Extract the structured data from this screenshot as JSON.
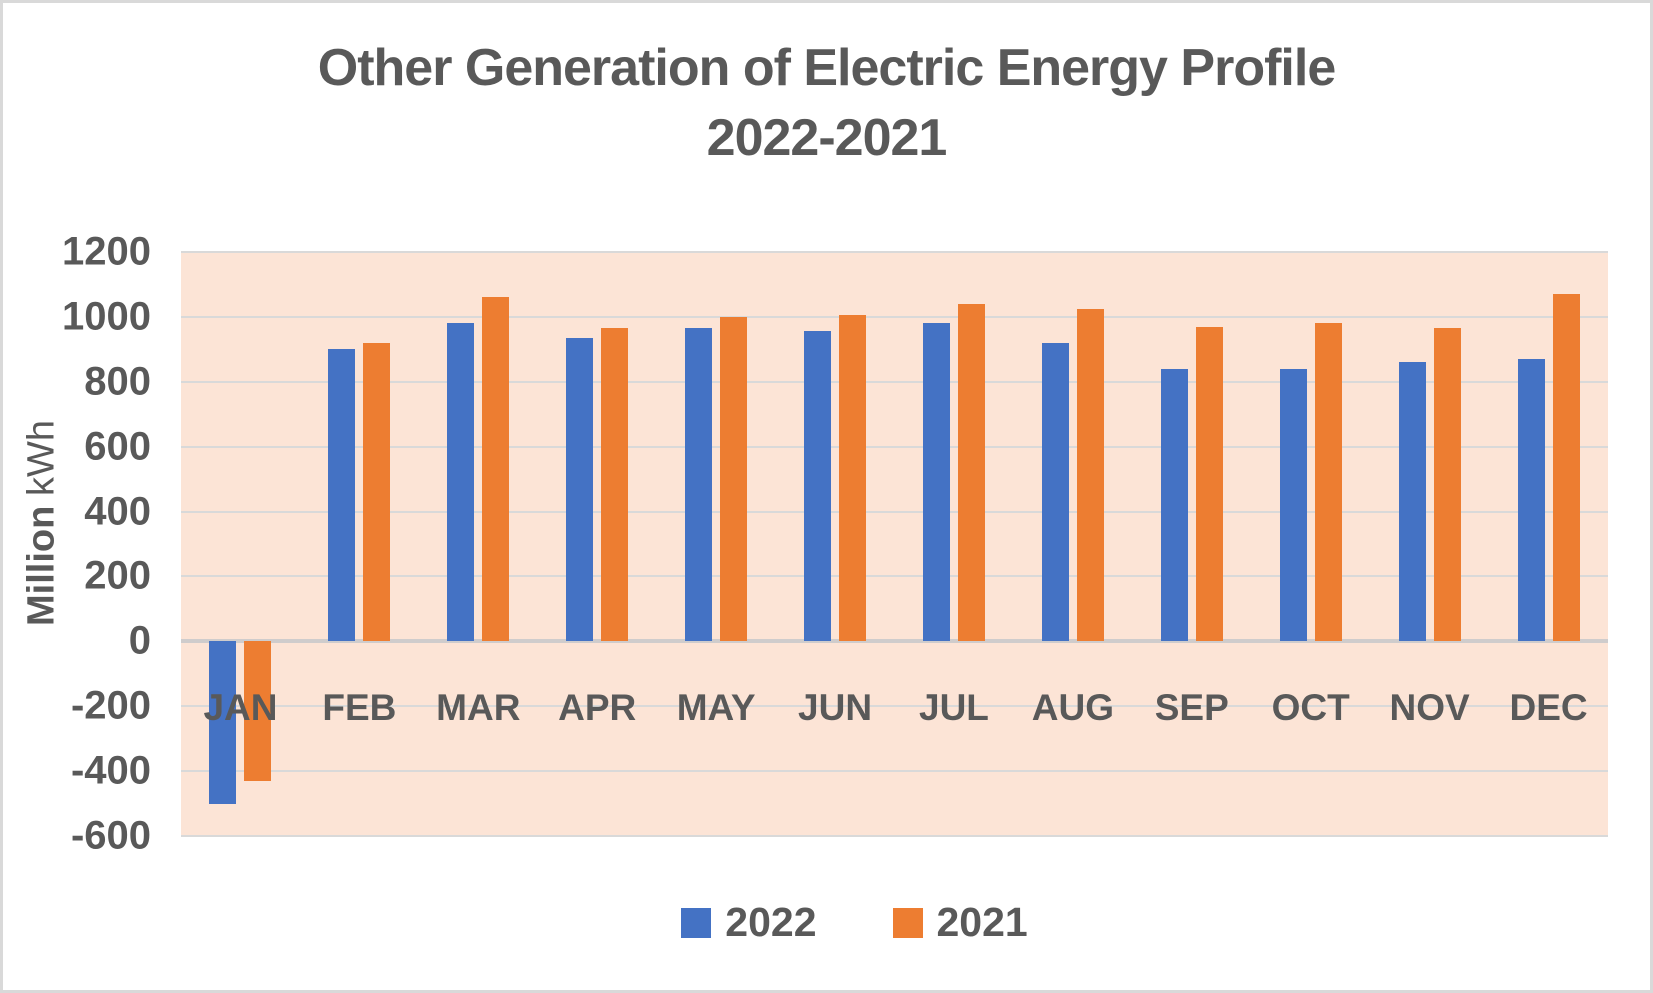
{
  "title": {
    "line1": "Other Generation of Electric Energy Profile",
    "line2": "2022-2021"
  },
  "y_axis_title": {
    "bold_part": "Million",
    "regular_part": "kWh"
  },
  "legend": {
    "items": [
      {
        "label": "2022",
        "color": "#4472c4"
      },
      {
        "label": "2021",
        "color": "#ed7d31"
      }
    ]
  },
  "colors": {
    "series_2022": "#4472c4",
    "series_2021": "#ed7d31",
    "plot_background": "#fce4d6",
    "gridline": "#d9d9d9",
    "text": "#595959"
  },
  "chart_data": {
    "type": "bar",
    "title": "Other Generation of Electric Energy Profile 2022-2021",
    "ylabel": "Million kWh",
    "categories": [
      "JAN",
      "FEB",
      "MAR",
      "APR",
      "MAY",
      "JUN",
      "JUL",
      "AUG",
      "SEP",
      "OCT",
      "NOV",
      "DEC"
    ],
    "series": [
      {
        "name": "2022",
        "color": "#4472c4",
        "values": [
          -500,
          900,
          980,
          935,
          965,
          955,
          980,
          920,
          840,
          840,
          860,
          870
        ]
      },
      {
        "name": "2021",
        "color": "#ed7d31",
        "values": [
          -430,
          920,
          1060,
          965,
          1000,
          1005,
          1040,
          1025,
          970,
          980,
          965,
          1070
        ]
      }
    ],
    "ylim": [
      -600,
      1200
    ],
    "ytick_step": 200,
    "ytick_labels": [
      "1200",
      "1000",
      "800",
      "600",
      "400",
      "200",
      "0",
      "-200",
      "-400",
      "-600"
    ],
    "grid": true,
    "legend_position": "bottom",
    "plot_bg": "#fce4d6"
  }
}
